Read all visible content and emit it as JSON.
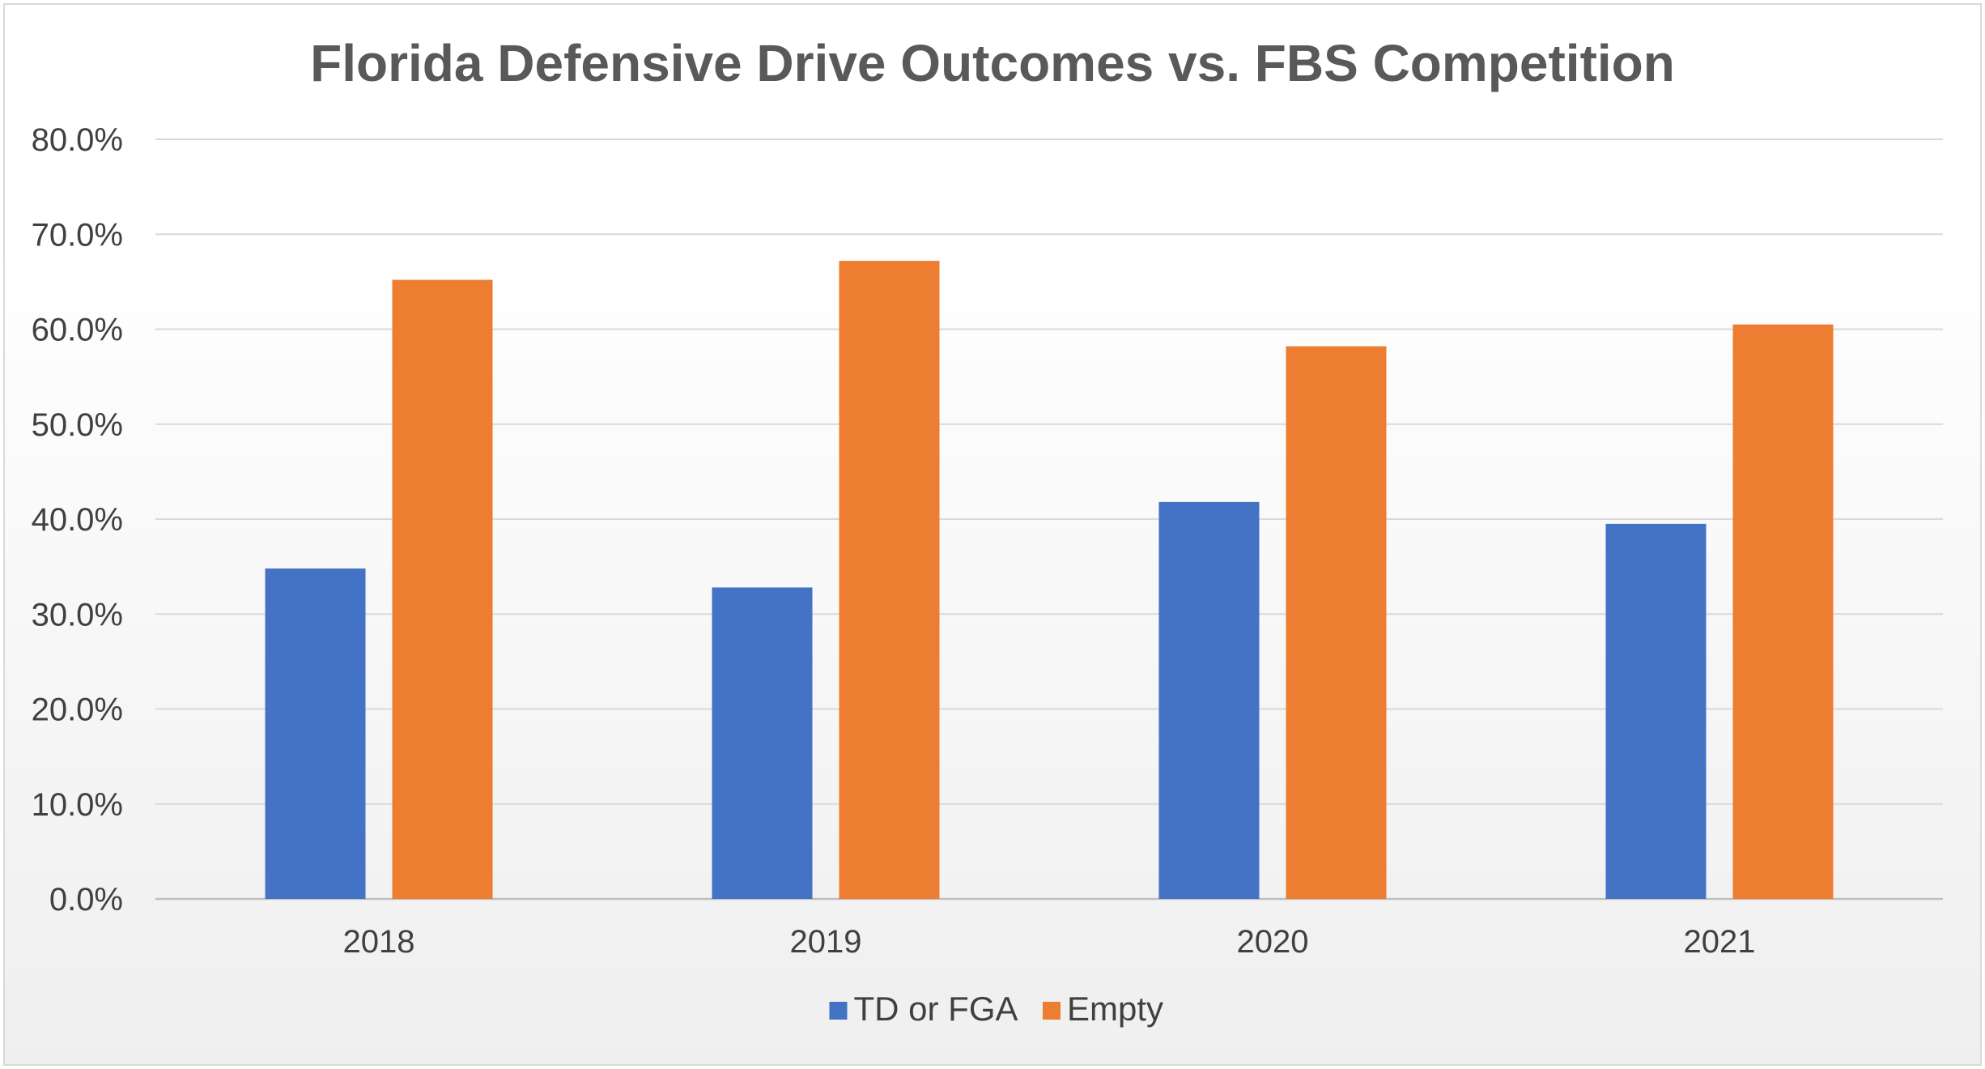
{
  "chart_data": {
    "type": "bar",
    "title": "Florida Defensive Drive Outcomes vs. FBS Competition",
    "categories": [
      "2018",
      "2019",
      "2020",
      "2021"
    ],
    "series": [
      {
        "name": "TD or FGA",
        "color": "#4472C4",
        "values": [
          34.8,
          32.8,
          41.8,
          39.5
        ]
      },
      {
        "name": "Empty",
        "color": "#ED7D31",
        "values": [
          65.2,
          67.2,
          58.2,
          60.5
        ]
      }
    ],
    "ylim": [
      0,
      80
    ],
    "y_ticks": [
      "0.0%",
      "10.0%",
      "20.0%",
      "30.0%",
      "40.0%",
      "50.0%",
      "60.0%",
      "70.0%",
      "80.0%"
    ],
    "xlabel": "",
    "ylabel": "",
    "grid": true,
    "legend_position": "bottom"
  }
}
